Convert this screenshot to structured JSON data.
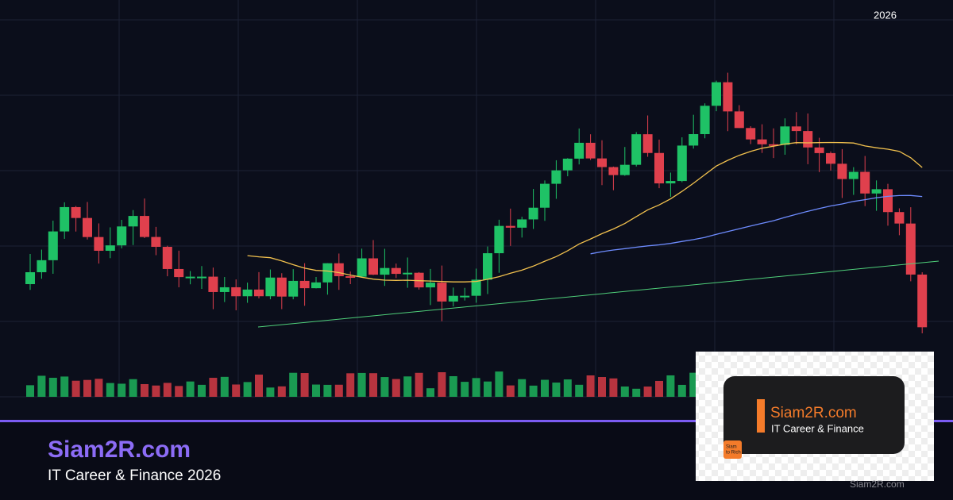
{
  "header": {
    "year": "2026"
  },
  "brand": {
    "title": "Siam2R.com",
    "subtitle": "IT Career & Finance 2026"
  },
  "card": {
    "title": "Siam2R.com",
    "subtitle": "IT Career & Finance",
    "logo": [
      "Siam",
      "to Rich"
    ]
  },
  "footer": "Siam2R.com"
}
